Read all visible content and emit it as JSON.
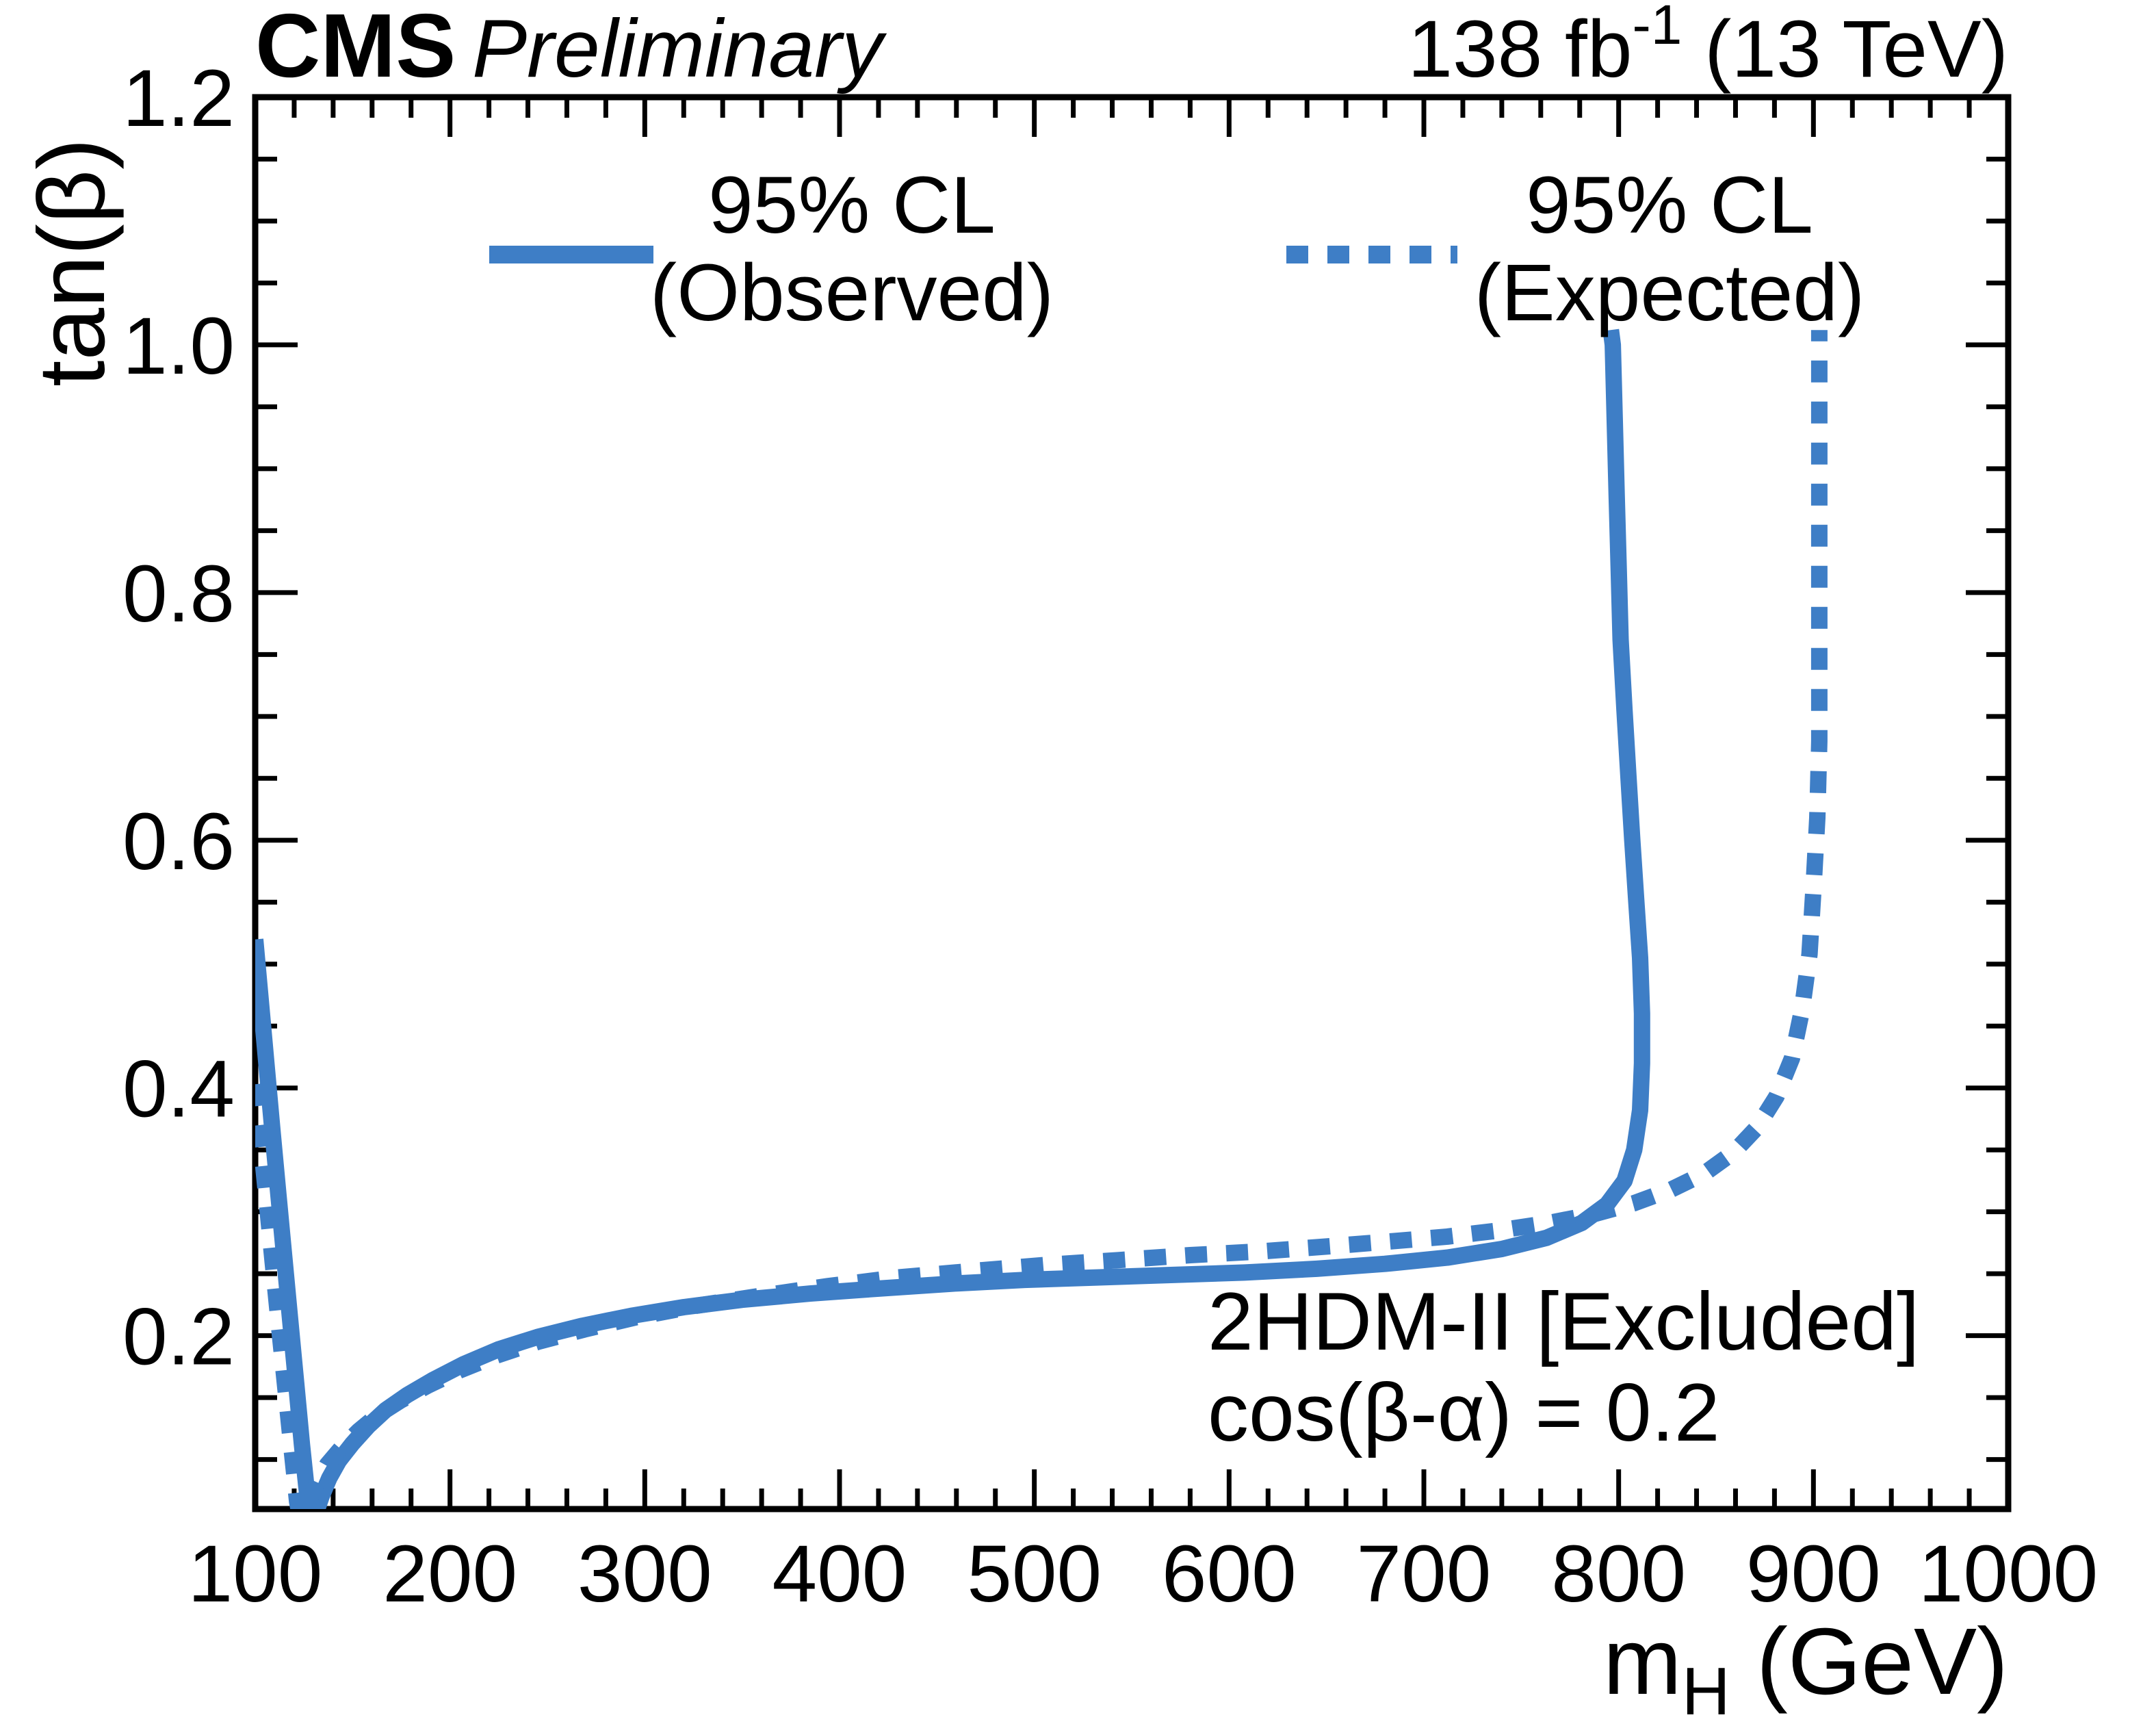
{
  "header": {
    "experiment": "CMS",
    "status": "Preliminary",
    "lumi_main": "138 fb",
    "lumi_sup": "-1",
    "lumi_rest": " (13 TeV)"
  },
  "legend": {
    "observed": {
      "line1": "95% CL",
      "line2": "(Observed)",
      "style": "solid"
    },
    "expected": {
      "line1": "95% CL",
      "line2": "(Expected)",
      "style": "dashed"
    }
  },
  "annotation": {
    "line1": "2HDM-II [Excluded]",
    "line2": "cos(β-α) = 0.2"
  },
  "colors": {
    "curve": "#3e7ec6",
    "frame": "#000000"
  },
  "axes": {
    "x": {
      "title_main": "m",
      "title_sub": "H",
      "title_rest": " (GeV)",
      "min": 100,
      "max": 1000,
      "major_step": 100,
      "minor_step": 20,
      "tick_labels": [
        "100",
        "200",
        "300",
        "400",
        "500",
        "600",
        "700",
        "800",
        "900",
        "1000"
      ]
    },
    "y": {
      "title": "tan(β)",
      "min": 0.06,
      "max": 1.2,
      "major_step": 0.2,
      "minor_step": 0.05,
      "tick_labels": [
        "0.2",
        "0.4",
        "0.6",
        "0.8",
        "1.0",
        "1.2"
      ]
    }
  },
  "chart_data": {
    "type": "line",
    "title": "",
    "xlabel": "m_H (GeV)",
    "ylabel": "tan(beta)",
    "xlim": [
      100,
      1000
    ],
    "ylim": [
      0.06,
      1.2
    ],
    "grid": false,
    "legend_position": "top-inside",
    "series": [
      {
        "name": "95% CL (Observed)",
        "style": "solid",
        "points": [
          [
            100,
            0.52
          ],
          [
            103,
            0.468
          ],
          [
            106,
            0.415
          ],
          [
            109,
            0.363
          ],
          [
            112,
            0.312
          ],
          [
            115,
            0.262
          ],
          [
            118,
            0.212
          ],
          [
            121,
            0.162
          ],
          [
            124,
            0.112
          ],
          [
            126,
            0.082
          ],
          [
            127.5,
            0.06
          ],
          [
            129,
            0.052
          ],
          [
            131,
            0.056
          ],
          [
            134,
            0.07
          ],
          [
            138,
            0.085
          ],
          [
            143,
            0.099
          ],
          [
            150,
            0.113
          ],
          [
            158,
            0.127
          ],
          [
            167,
            0.14
          ],
          [
            178,
            0.152
          ],
          [
            191,
            0.164
          ],
          [
            207,
            0.177
          ],
          [
            225,
            0.189
          ],
          [
            245,
            0.199
          ],
          [
            268,
            0.208
          ],
          [
            293,
            0.216
          ],
          [
            320,
            0.223
          ],
          [
            350,
            0.229
          ],
          [
            385,
            0.234
          ],
          [
            420,
            0.238
          ],
          [
            458,
            0.242
          ],
          [
            495,
            0.245
          ],
          [
            532,
            0.247
          ],
          [
            570,
            0.249
          ],
          [
            608,
            0.251
          ],
          [
            645,
            0.254
          ],
          [
            680,
            0.258
          ],
          [
            712,
            0.263
          ],
          [
            740,
            0.27
          ],
          [
            763,
            0.279
          ],
          [
            781,
            0.291
          ],
          [
            794,
            0.306
          ],
          [
            803,
            0.325
          ],
          [
            808,
            0.35
          ],
          [
            811,
            0.382
          ],
          [
            812,
            0.42
          ],
          [
            812,
            0.46
          ],
          [
            811,
            0.505
          ],
          [
            809,
            0.552
          ],
          [
            807,
            0.6
          ],
          [
            805,
            0.652
          ],
          [
            803,
            0.705
          ],
          [
            801,
            0.762
          ],
          [
            800,
            0.82
          ],
          [
            799,
            0.878
          ],
          [
            798,
            0.938
          ],
          [
            797,
            1.0
          ],
          [
            796,
            1.012
          ]
        ]
      },
      {
        "name": "95% CL (Expected)",
        "style": "dashed",
        "points": [
          [
            100,
            0.403
          ],
          [
            103,
            0.355
          ],
          [
            106,
            0.307
          ],
          [
            109,
            0.259
          ],
          [
            112,
            0.211
          ],
          [
            115,
            0.165
          ],
          [
            118,
            0.119
          ],
          [
            120,
            0.089
          ],
          [
            121.5,
            0.066
          ],
          [
            123,
            0.054
          ],
          [
            125,
            0.056
          ],
          [
            128,
            0.068
          ],
          [
            132,
            0.082
          ],
          [
            137,
            0.096
          ],
          [
            144,
            0.109
          ],
          [
            153,
            0.123
          ],
          [
            163,
            0.136
          ],
          [
            175,
            0.148
          ],
          [
            189,
            0.16
          ],
          [
            205,
            0.172
          ],
          [
            224,
            0.184
          ],
          [
            245,
            0.195
          ],
          [
            269,
            0.205
          ],
          [
            296,
            0.215
          ],
          [
            326,
            0.224
          ],
          [
            359,
            0.232
          ],
          [
            394,
            0.24
          ],
          [
            430,
            0.247
          ],
          [
            467,
            0.252
          ],
          [
            505,
            0.257
          ],
          [
            543,
            0.261
          ],
          [
            580,
            0.265
          ],
          [
            616,
            0.268
          ],
          [
            650,
            0.272
          ],
          [
            682,
            0.276
          ],
          [
            712,
            0.28
          ],
          [
            739,
            0.285
          ],
          [
            764,
            0.291
          ],
          [
            787,
            0.298
          ],
          [
            808,
            0.307
          ],
          [
            827,
            0.318
          ],
          [
            844,
            0.331
          ],
          [
            859,
            0.348
          ],
          [
            871,
            0.368
          ],
          [
            881,
            0.393
          ],
          [
            889,
            0.424
          ],
          [
            894,
            0.462
          ],
          [
            898,
            0.508
          ],
          [
            900,
            0.56
          ],
          [
            902,
            0.618
          ],
          [
            903,
            0.68
          ],
          [
            903,
            0.745
          ],
          [
            903,
            0.81
          ],
          [
            903,
            0.878
          ],
          [
            903,
            0.945
          ],
          [
            903,
            1.012
          ]
        ]
      }
    ]
  }
}
